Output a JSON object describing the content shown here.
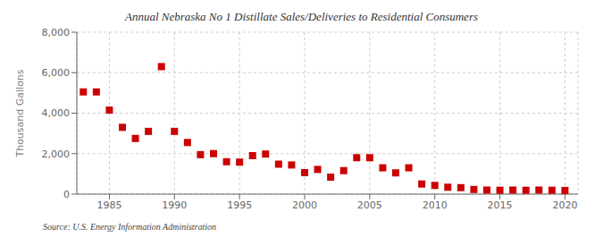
{
  "chart_data": {
    "type": "scatter",
    "title": "Annual Nebraska No 1 Distillate Sales/Deliveries to Residential Consumers",
    "ylabel": "Thousand Gallons",
    "annotations": [
      "Source: U.S. Energy Information Administration"
    ],
    "x": [
      1983,
      1984,
      1985,
      1986,
      1987,
      1988,
      1989,
      1990,
      1991,
      1992,
      1993,
      1994,
      1995,
      1996,
      1997,
      1998,
      1999,
      2000,
      2001,
      2002,
      2003,
      2004,
      2005,
      2006,
      2007,
      2008,
      2009,
      2010,
      2011,
      2012,
      2013,
      2014,
      2015,
      2016,
      2017,
      2018,
      2019,
      2020
    ],
    "values": [
      5050,
      5050,
      4150,
      3300,
      2750,
      3100,
      6300,
      3100,
      2550,
      1950,
      2000,
      1600,
      1580,
      1900,
      1980,
      1480,
      1440,
      1060,
      1220,
      840,
      1160,
      1800,
      1800,
      1300,
      1050,
      1300,
      500,
      430,
      340,
      320,
      230,
      200,
      190,
      200,
      190,
      200,
      190,
      180
    ],
    "color": "#cc0000",
    "marker": "square",
    "xlim": [
      1982.5,
      2021
    ],
    "ylim": [
      0,
      8000
    ],
    "xticks": [
      1985,
      1990,
      1995,
      2000,
      2005,
      2010,
      2015,
      2020
    ],
    "yticks": [
      0,
      {
        "value": 2000,
        "label": "2,000"
      },
      {
        "value": 4000,
        "label": "4,000"
      },
      {
        "value": 6000,
        "label": "6,000"
      },
      {
        "value": 8000,
        "label": "8,000"
      }
    ],
    "grid": true
  }
}
